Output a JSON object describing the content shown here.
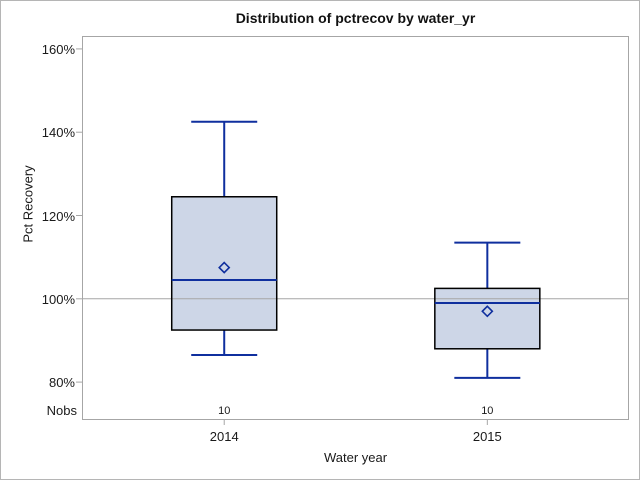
{
  "chart_data": {
    "type": "boxplot",
    "title": "Distribution of pctrecov by water_yr",
    "xlabel": "Water year",
    "ylabel": "Pct Recovery",
    "categories": [
      "2014",
      "2015"
    ],
    "nobs_label": "Nobs",
    "nobs": [
      "10",
      "10"
    ],
    "y_ticks": [
      80,
      100,
      120,
      140,
      160
    ],
    "y_tick_labels": [
      "80%",
      "100%",
      "120%",
      "140%",
      "160%"
    ],
    "ylim": [
      70.9,
      163.1
    ],
    "reference_line": 100,
    "grid": "off",
    "legend": "none",
    "series": [
      {
        "category": "2014",
        "whisker_low": 86.5,
        "q1": 92.5,
        "median": 104.5,
        "q3": 124.5,
        "whisker_high": 142.5,
        "mean": 107.5,
        "n": 10
      },
      {
        "category": "2015",
        "whisker_low": 81.0,
        "q1": 88.0,
        "median": 99.0,
        "q3": 102.5,
        "whisker_high": 113.5,
        "mean": 97.0,
        "n": 10
      }
    ],
    "colors": {
      "box_fill": "#cdd6e7",
      "box_border": "#000000",
      "whisker": "#0f2f9e",
      "median": "#0f2f9e",
      "mean_marker": "#0f2f9e",
      "reference_line": "#a6a6a6",
      "axis": "#a6a6a6",
      "text": "#1a1a1a"
    }
  }
}
